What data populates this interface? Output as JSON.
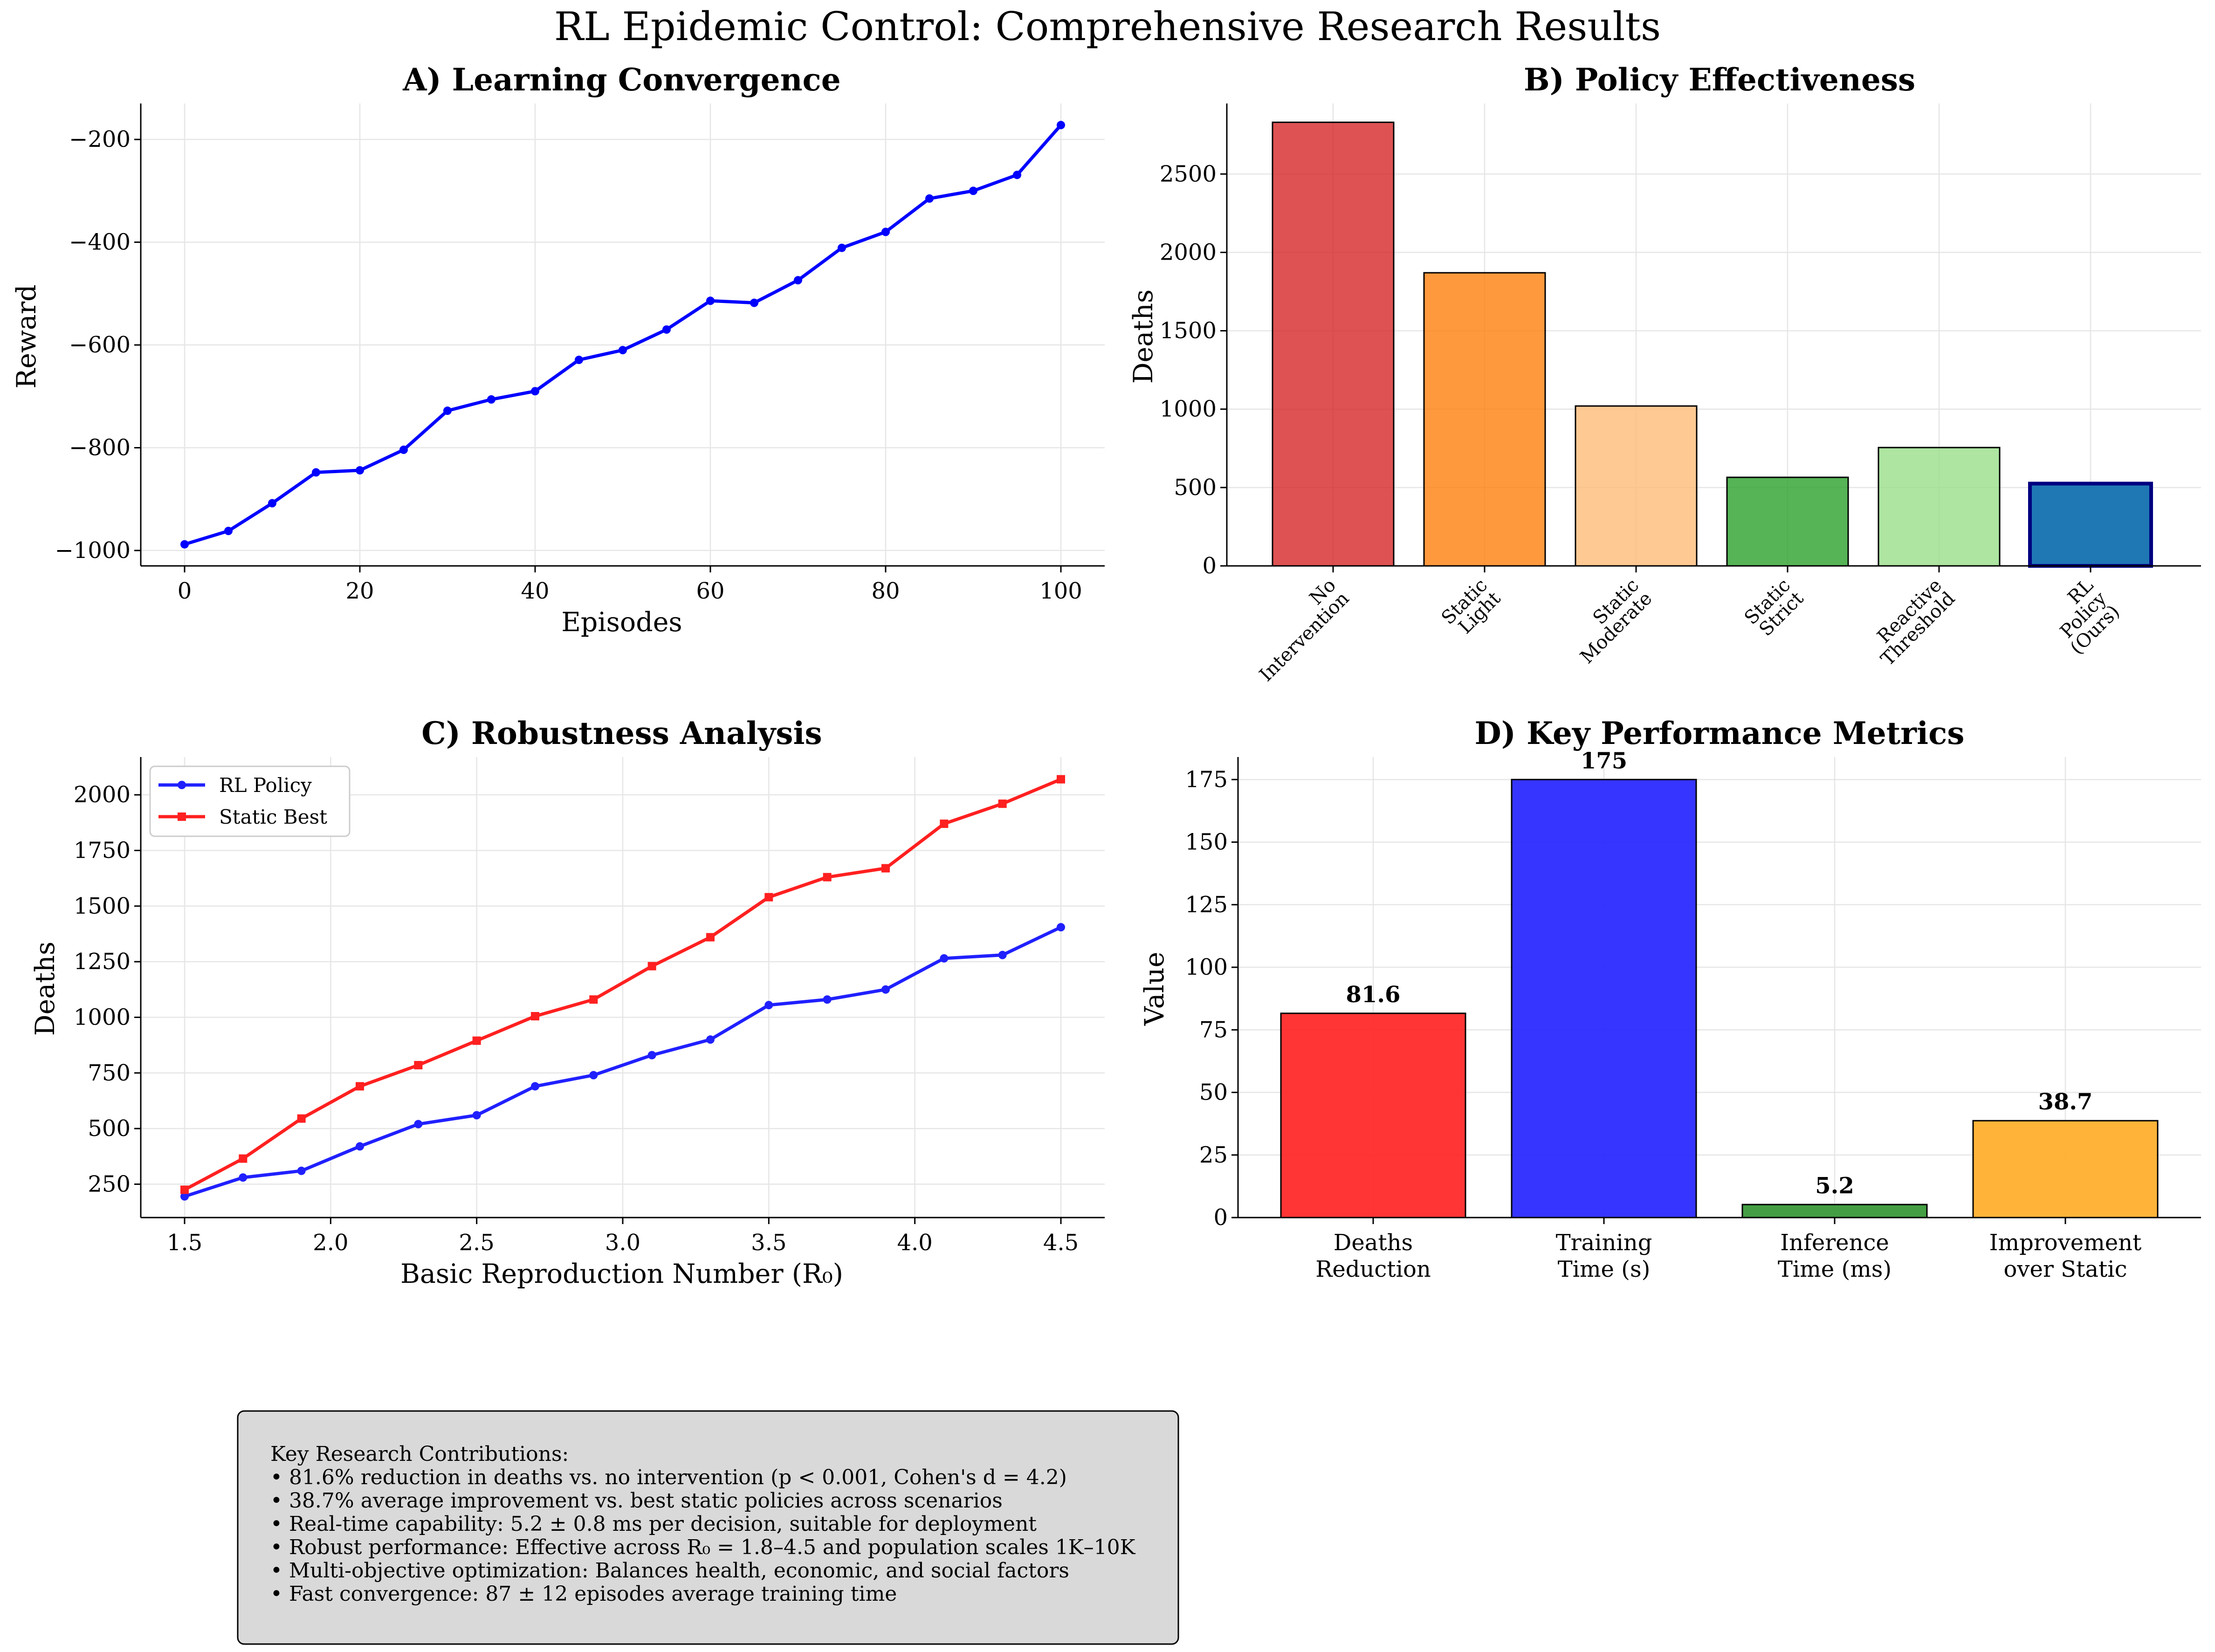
{
  "figure": {
    "title": "RL Epidemic Control: Comprehensive Research Results"
  },
  "chart_data": [
    {
      "type": "line",
      "title": "A) Learning Convergence",
      "xlabel": "Episodes",
      "ylabel": "Reward",
      "xlim": [
        -5,
        105
      ],
      "ylim": [
        -1030,
        -130
      ],
      "xticks": [
        0,
        20,
        40,
        60,
        80,
        100
      ],
      "yticks": [
        -1000,
        -800,
        -600,
        -400,
        -200
      ],
      "ytick_labels": [
        "−1000",
        "−800",
        "−600",
        "−400",
        "−200"
      ],
      "grid": true,
      "series": [
        {
          "color": "#0000ff",
          "marker": "circle",
          "x": [
            0,
            5,
            10,
            15,
            20,
            25,
            30,
            35,
            40,
            45,
            50,
            55,
            60,
            65,
            70,
            75,
            80,
            85,
            90,
            95,
            100
          ],
          "y": [
            -988,
            -962,
            -908,
            -848,
            -844,
            -804,
            -728,
            -706,
            -690,
            -629,
            -610,
            -570,
            -514,
            -518,
            -474,
            -411,
            -380,
            -315,
            -300,
            -269,
            -172
          ]
        }
      ]
    },
    {
      "type": "bar",
      "title": "B) Policy Effectiveness",
      "xlabel": "",
      "ylabel": "Deaths",
      "ylim": [
        0,
        2950
      ],
      "yticks": [
        0,
        500,
        1000,
        1500,
        2000,
        2500
      ],
      "grid": true,
      "categories": [
        "No\nIntervention",
        "Static\nLight",
        "Static\nModerate",
        "Static\nStrict",
        "Reactive\nThreshold",
        "RL\nPolicy\n(Ours)"
      ],
      "values": [
        2830,
        1870,
        1020,
        565,
        755,
        525
      ],
      "colors": [
        "#d62728",
        "#ff7f0e",
        "#ffbb78",
        "#2ca02c",
        "#98df8a",
        "#1f77b4"
      ],
      "highlight_edge": "#000080"
    },
    {
      "type": "line",
      "title": "C) Robustness Analysis",
      "xlabel": "Basic Reproduction Number (R₀)",
      "ylabel": "Deaths",
      "xlim": [
        1.35,
        4.65
      ],
      "ylim": [
        100,
        2170
      ],
      "xticks": [
        1.5,
        2.0,
        2.5,
        3.0,
        3.5,
        4.0,
        4.5
      ],
      "xtick_labels": [
        "1.5",
        "2.0",
        "2.5",
        "3.0",
        "3.5",
        "4.0",
        "4.5"
      ],
      "yticks": [
        250,
        500,
        750,
        1000,
        1250,
        1500,
        1750,
        2000
      ],
      "grid": true,
      "legend": "top-left",
      "x": [
        1.5,
        1.7,
        1.9,
        2.1,
        2.3,
        2.5,
        2.7,
        2.9,
        3.1,
        3.3,
        3.5,
        3.7,
        3.9,
        4.1,
        4.3,
        4.5
      ],
      "series": [
        {
          "name": "RL Policy",
          "color": "#2020ff",
          "marker": "circle",
          "values": [
            195,
            280,
            310,
            420,
            520,
            560,
            690,
            740,
            830,
            900,
            1055,
            1080,
            1125,
            1265,
            1280,
            1405
          ]
        },
        {
          "name": "Static Best",
          "color": "#ff2020",
          "marker": "square",
          "values": [
            225,
            365,
            545,
            690,
            785,
            895,
            1005,
            1080,
            1230,
            1360,
            1540,
            1630,
            1670,
            1870,
            1960,
            2070
          ]
        }
      ]
    },
    {
      "type": "bar",
      "title": "D) Key Performance Metrics",
      "xlabel": "",
      "ylabel": "Value",
      "ylim": [
        0,
        184
      ],
      "yticks": [
        0,
        25,
        50,
        75,
        100,
        125,
        150,
        175
      ],
      "grid": true,
      "categories": [
        "Deaths\nReduction",
        "Training\nTime (s)",
        "Inference\nTime (ms)",
        "Improvement\nover Static"
      ],
      "values": [
        81.6,
        175,
        5.2,
        38.7
      ],
      "value_labels": [
        "81.6",
        "175",
        "5.2",
        "38.7"
      ],
      "colors": [
        "#ff2a2a",
        "#2a2aff",
        "#3a9a3a",
        "#ffb02e"
      ]
    }
  ],
  "notes": {
    "lines": [
      "Key Research Contributions:",
      "• 81.6% reduction in deaths vs. no intervention (p < 0.001, Cohen's d = 4.2)",
      "• 38.7% average improvement vs. best static policies across scenarios",
      "• Real-time capability: 5.2 ± 0.8 ms per decision, suitable for deployment",
      "• Robust performance: Effective across R₀ = 1.8–4.5 and population scales 1K–10K",
      "• Multi-objective optimization: Balances health, economic, and social factors",
      "• Fast convergence: 87 ± 12 episodes average training time"
    ]
  }
}
